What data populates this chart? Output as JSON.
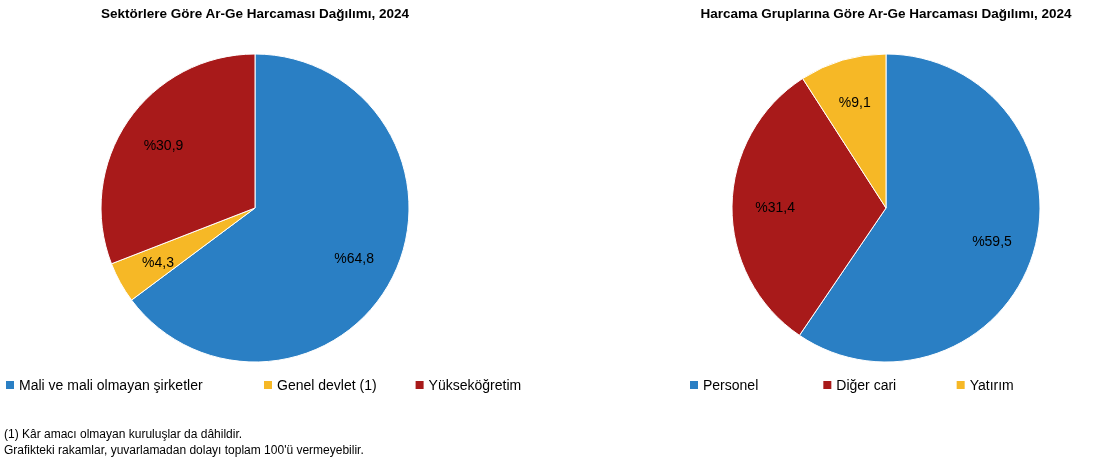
{
  "chart_data": [
    {
      "type": "pie",
      "title": "Sektörlere Göre Ar-Ge Harcaması Dağılımı, 2024",
      "categories": [
        "Mali ve mali olmayan şirketler",
        "Genel devlet (1)",
        "Yükseköğretim"
      ],
      "values": [
        64.8,
        4.3,
        30.9
      ],
      "value_labels": [
        "%64,8",
        "%4,3",
        "%30,9"
      ],
      "colors": [
        "#2a7fc4",
        "#f6b826",
        "#a81a1a"
      ],
      "legend": "bottom",
      "annotations": [
        "(1)  Kâr amacı olmayan kuruluşlar da dâhildir.",
        "Grafikteki rakamlar, yuvarlamadan dolayı toplam 100'ü vermeyebilir."
      ]
    },
    {
      "type": "pie",
      "title": "Harcama Gruplarına Göre Ar-Ge Harcaması Dağılımı, 2024",
      "categories": [
        "Personel",
        "Diğer cari",
        "Yatırım"
      ],
      "values": [
        59.5,
        31.4,
        9.1
      ],
      "value_labels": [
        "%59,5",
        "%31,4",
        "%9,1"
      ],
      "colors": [
        "#2a7fc4",
        "#a81a1a",
        "#f6b826"
      ],
      "legend": "bottom"
    }
  ]
}
